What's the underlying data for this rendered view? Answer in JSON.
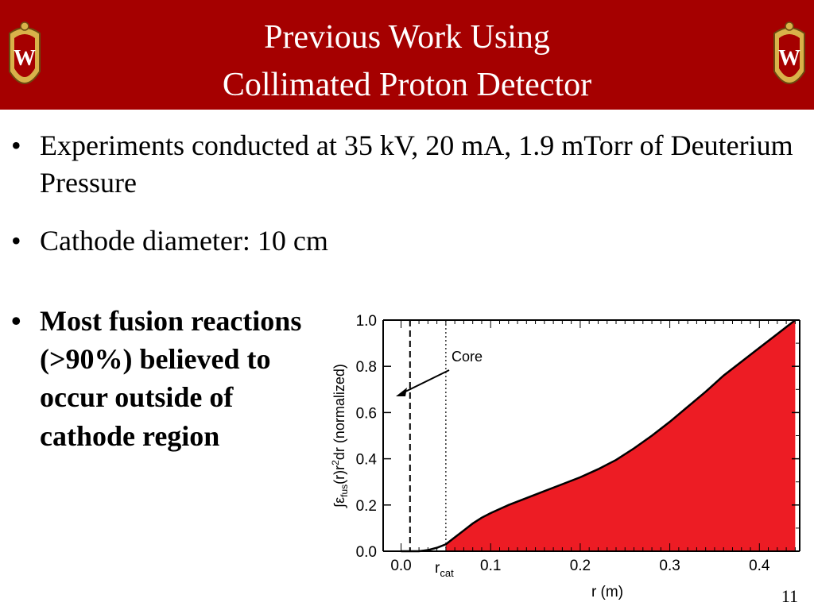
{
  "slide": {
    "title_line1": "Previous Work Using",
    "title_line2": "Collimated Proton Detector",
    "bullets": [
      "Experiments conducted at 35 kV, 20 mA, 1.9 mTorr of Deuterium Pressure",
      "Cathode diameter: 10 cm"
    ],
    "bold_bullet": "Most fusion reactions (>90%) believed to occur outside of cathode region",
    "bullet_glyph": "•",
    "slide_number": "11",
    "colors": {
      "header": "#a50000",
      "fill": "#ed1c24",
      "crest_gold": "#d9b24a"
    },
    "crest_letter": "W"
  },
  "chart_data": {
    "type": "area",
    "xlabel": "r (m)",
    "ylabel_parts": {
      "integral": "∫",
      "epsilon": "ε",
      "sub": "fus",
      "rest": "(r)r",
      "sup": "2",
      "tail": "dr (normalized)"
    },
    "xlim": [
      -0.02,
      0.445
    ],
    "ylim": [
      0,
      1.0
    ],
    "x_ticks": [
      {
        "value": 0.0,
        "label": "0.0"
      },
      {
        "value": 0.1,
        "label": "0.1"
      },
      {
        "value": 0.2,
        "label": "0.2"
      },
      {
        "value": 0.3,
        "label": "0.3"
      },
      {
        "value": 0.4,
        "label": "0.4"
      }
    ],
    "y_ticks": [
      {
        "value": 0.0,
        "label": "0.0"
      },
      {
        "value": 0.2,
        "label": "0.2"
      },
      {
        "value": 0.4,
        "label": "0.4"
      },
      {
        "value": 0.6,
        "label": "0.6"
      },
      {
        "value": 0.8,
        "label": "0.8"
      },
      {
        "value": 1.0,
        "label": "1.0"
      }
    ],
    "r_cat": {
      "value": 0.05,
      "label_main": "r",
      "label_sub": "cat"
    },
    "core_line_x": 0.01,
    "annotation": {
      "text": "Core"
    },
    "series": [
      {
        "points": [
          [
            0.0,
            0.0
          ],
          [
            0.02,
            0.0
          ],
          [
            0.03,
            0.005
          ],
          [
            0.04,
            0.015
          ],
          [
            0.05,
            0.03
          ],
          [
            0.06,
            0.06
          ],
          [
            0.07,
            0.09
          ],
          [
            0.08,
            0.12
          ],
          [
            0.09,
            0.145
          ],
          [
            0.1,
            0.165
          ],
          [
            0.12,
            0.2
          ],
          [
            0.14,
            0.23
          ],
          [
            0.16,
            0.26
          ],
          [
            0.18,
            0.29
          ],
          [
            0.2,
            0.32
          ],
          [
            0.22,
            0.355
          ],
          [
            0.24,
            0.395
          ],
          [
            0.26,
            0.445
          ],
          [
            0.28,
            0.5
          ],
          [
            0.3,
            0.56
          ],
          [
            0.32,
            0.625
          ],
          [
            0.34,
            0.69
          ],
          [
            0.36,
            0.76
          ],
          [
            0.38,
            0.82
          ],
          [
            0.4,
            0.88
          ],
          [
            0.42,
            0.94
          ],
          [
            0.44,
            1.0
          ]
        ]
      }
    ]
  }
}
